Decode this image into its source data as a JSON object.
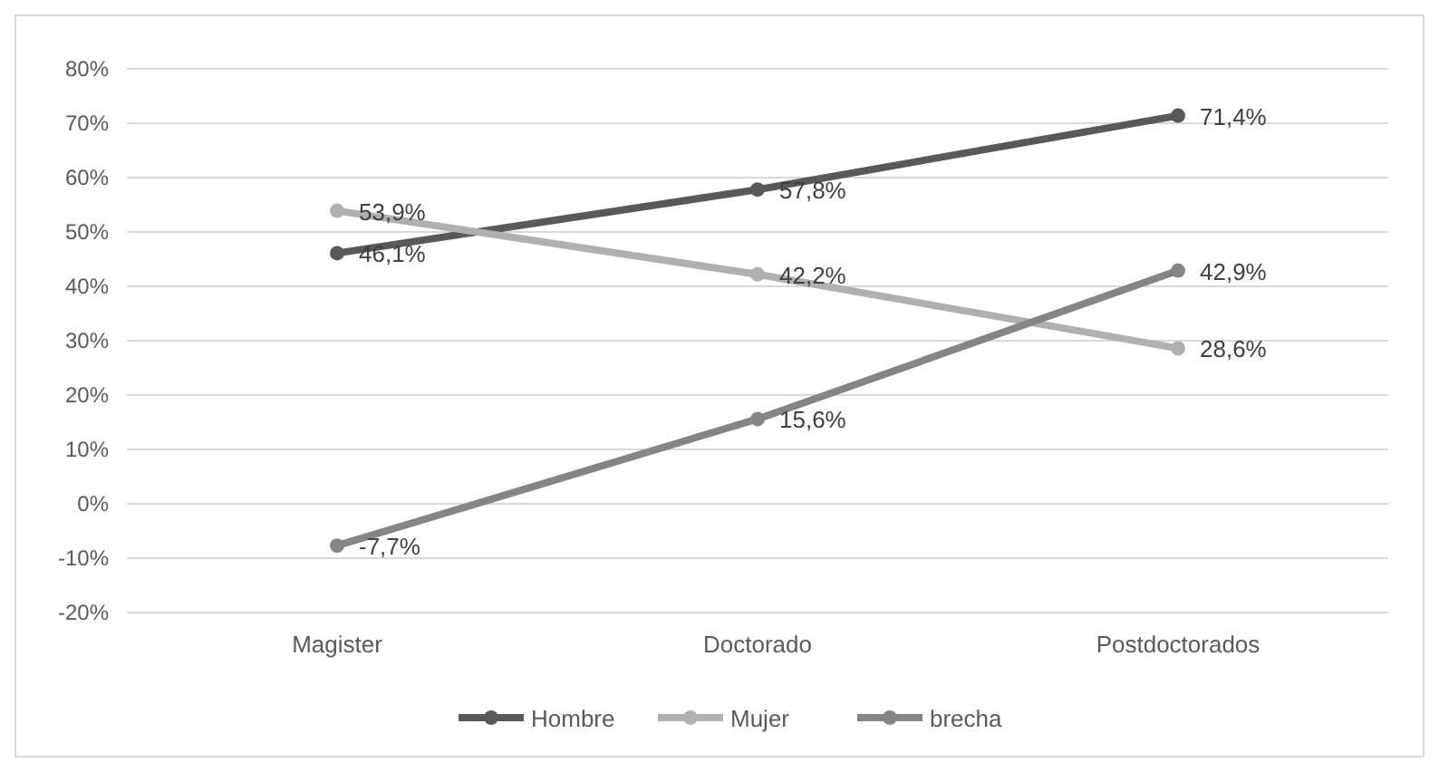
{
  "chart_data": {
    "type": "line",
    "categories": [
      "Magister",
      "Doctorado",
      "Postdoctorados"
    ],
    "series": [
      {
        "name": "Hombre",
        "color": "#595959",
        "values": [
          46.1,
          57.8,
          71.4
        ],
        "value_labels": [
          "46,1%",
          "57,8%",
          "71,4%"
        ]
      },
      {
        "name": "Mujer",
        "color": "#b0b0b0",
        "values": [
          53.9,
          42.2,
          28.6
        ],
        "value_labels": [
          "53,9%",
          "42,2%",
          "28,6%"
        ]
      },
      {
        "name": "brecha",
        "color": "#858585",
        "values": [
          -7.7,
          15.6,
          42.9
        ],
        "value_labels": [
          "-7,7%",
          "15,6%",
          "42,9%"
        ]
      }
    ],
    "ylim": [
      -20,
      80
    ],
    "yticks": [
      {
        "value": -20,
        "label": "-20%"
      },
      {
        "value": -10,
        "label": "-10%"
      },
      {
        "value": 0,
        "label": "0%"
      },
      {
        "value": 10,
        "label": "10%"
      },
      {
        "value": 20,
        "label": "20%"
      },
      {
        "value": 30,
        "label": "30%"
      },
      {
        "value": 40,
        "label": "40%"
      },
      {
        "value": 50,
        "label": "50%"
      },
      {
        "value": 60,
        "label": "60%"
      },
      {
        "value": 70,
        "label": "70%"
      },
      {
        "value": 80,
        "label": "80%"
      }
    ],
    "grid": "y",
    "legend": "bottom",
    "marker": "circle",
    "line_style": "solid"
  }
}
